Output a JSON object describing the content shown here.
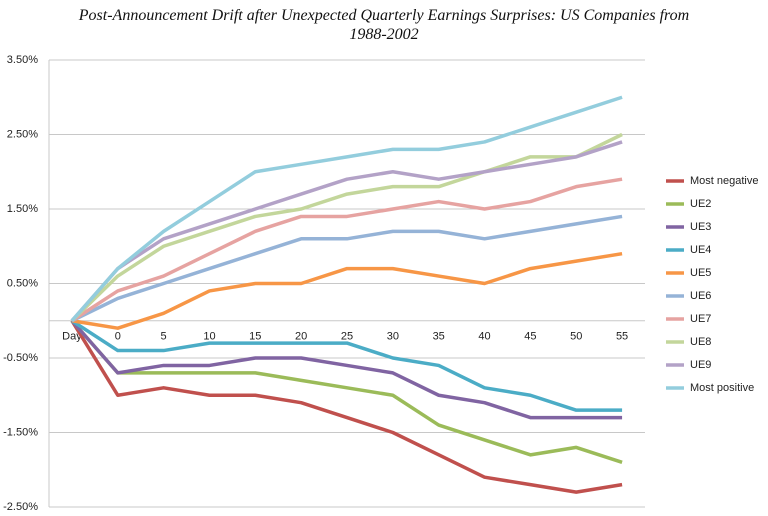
{
  "chart_data": {
    "type": "line",
    "title": "Post-Announcement Drift after Unexpected Quarterly Earnings Surprises: US Companies from 1988-2002",
    "categories": [
      "Day",
      "0",
      "5",
      "10",
      "15",
      "20",
      "25",
      "30",
      "35",
      "40",
      "45",
      "50",
      "55"
    ],
    "ylim": [
      -2.5,
      3.5
    ],
    "yticks": [
      {
        "value": -2.5,
        "label": "-2.50%"
      },
      {
        "value": -1.5,
        "label": "-1.50%"
      },
      {
        "value": -0.5,
        "label": "-0.50%"
      },
      {
        "value": 0.5,
        "label": "0.50%"
      },
      {
        "value": 1.5,
        "label": "1.50%"
      },
      {
        "value": 2.5,
        "label": "2.50%"
      },
      {
        "value": 3.5,
        "label": "3.50%"
      }
    ],
    "grid": true,
    "legend": "right",
    "series": [
      {
        "name": "Most negative",
        "color": "#c0504d",
        "values": [
          0,
          -1.0,
          -0.9,
          -1.0,
          -1.0,
          -1.1,
          -1.3,
          -1.5,
          -1.8,
          -2.1,
          -2.2,
          -2.3,
          -2.2
        ]
      },
      {
        "name": "UE2",
        "color": "#9bbb59",
        "values": [
          0,
          -0.7,
          -0.7,
          -0.7,
          -0.7,
          -0.8,
          -0.9,
          -1.0,
          -1.4,
          -1.6,
          -1.8,
          -1.7,
          -1.9
        ]
      },
      {
        "name": "UE3",
        "color": "#8064a2",
        "values": [
          0,
          -0.7,
          -0.6,
          -0.6,
          -0.5,
          -0.5,
          -0.6,
          -0.7,
          -1.0,
          -1.1,
          -1.3,
          -1.3,
          -1.3
        ]
      },
      {
        "name": "UE4",
        "color": "#4bacc6",
        "values": [
          0,
          -0.4,
          -0.4,
          -0.3,
          -0.3,
          -0.3,
          -0.3,
          -0.5,
          -0.6,
          -0.9,
          -1.0,
          -1.2,
          -1.2
        ]
      },
      {
        "name": "UE5",
        "color": "#f79646",
        "values": [
          0,
          -0.1,
          0.1,
          0.4,
          0.5,
          0.5,
          0.7,
          0.7,
          0.6,
          0.5,
          0.7,
          0.8,
          0.9
        ]
      },
      {
        "name": "UE6",
        "color": "#95b3d7",
        "values": [
          0,
          0.3,
          0.5,
          0.7,
          0.9,
          1.1,
          1.1,
          1.2,
          1.2,
          1.1,
          1.2,
          1.3,
          1.4
        ]
      },
      {
        "name": "UE7",
        "color": "#e6a3a1",
        "values": [
          0,
          0.4,
          0.6,
          0.9,
          1.2,
          1.4,
          1.4,
          1.5,
          1.6,
          1.5,
          1.6,
          1.8,
          1.9
        ]
      },
      {
        "name": "UE8",
        "color": "#c3d69b",
        "values": [
          0,
          0.6,
          1.0,
          1.2,
          1.4,
          1.5,
          1.7,
          1.8,
          1.8,
          2.0,
          2.2,
          2.2,
          2.5
        ]
      },
      {
        "name": "UE9",
        "color": "#b3a2c7",
        "values": [
          0,
          0.7,
          1.1,
          1.3,
          1.5,
          1.7,
          1.9,
          2.0,
          1.9,
          2.0,
          2.1,
          2.2,
          2.4
        ]
      },
      {
        "name": "Most positive",
        "color": "#93cddd",
        "values": [
          0,
          0.7,
          1.2,
          1.6,
          2.0,
          2.1,
          2.2,
          2.3,
          2.3,
          2.4,
          2.6,
          2.8,
          3.0
        ]
      }
    ]
  }
}
